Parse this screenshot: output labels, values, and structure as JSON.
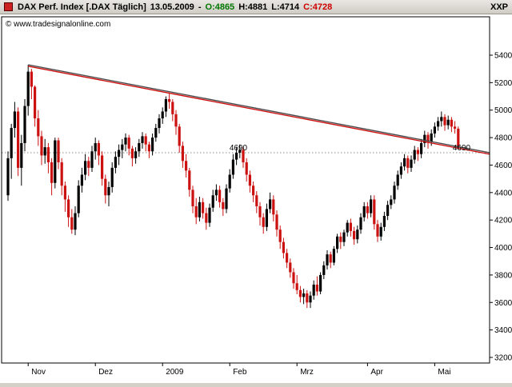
{
  "header": {
    "instrument": "DAX Perf. Index [.DAX  Täglich]",
    "date": "13.05.2009",
    "separator": "-",
    "open": "O:4865",
    "high": "H:4881",
    "low": "L:4714",
    "close": "C:4728",
    "top_right": "XXP"
  },
  "watermark": "© www.tradesignalonline.com",
  "chart_data": {
    "type": "candlestick",
    "title": "DAX Perf. Index [.DAX Täglich] 13.05.2009",
    "ylabel": "",
    "xlabel": "",
    "ylim": [
      3200,
      5400
    ],
    "grid": false,
    "legend_position": "none",
    "y_ticks": [
      5400,
      5200,
      5000,
      4800,
      4600,
      4400,
      4200,
      4000,
      3800,
      3600,
      3400,
      3200
    ],
    "x_ticks": [
      {
        "label": "Nov",
        "index": 6
      },
      {
        "label": "Dez",
        "index": 26
      },
      {
        "label": "2009",
        "index": 46
      },
      {
        "label": "Feb",
        "index": 66
      },
      {
        "label": "Mrz",
        "index": 86
      },
      {
        "label": "Apr",
        "index": 107
      },
      {
        "label": "Mai",
        "index": 127
      }
    ],
    "ohlc_format": [
      "open",
      "high",
      "low",
      "close"
    ],
    "candles": [
      [
        4380,
        4700,
        4340,
        4650
      ],
      [
        4650,
        4900,
        4500,
        4870
      ],
      [
        4870,
        5060,
        4800,
        4990
      ],
      [
        4990,
        5020,
        4520,
        4580
      ],
      [
        4580,
        4820,
        4450,
        4760
      ],
      [
        4760,
        5080,
        4700,
        5030
      ],
      [
        5030,
        5330,
        4960,
        5280
      ],
      [
        5280,
        5300,
        5080,
        5170
      ],
      [
        5170,
        5180,
        4880,
        4940
      ],
      [
        4940,
        5000,
        4740,
        4810
      ],
      [
        4810,
        4850,
        4600,
        4670
      ],
      [
        4670,
        4790,
        4610,
        4730
      ],
      [
        4730,
        4760,
        4540,
        4620
      ],
      [
        4620,
        4650,
        4380,
        4470
      ],
      [
        4470,
        4800,
        4430,
        4780
      ],
      [
        4780,
        4800,
        4570,
        4620
      ],
      [
        4620,
        4650,
        4380,
        4450
      ],
      [
        4450,
        4480,
        4260,
        4350
      ],
      [
        4350,
        4380,
        4150,
        4220
      ],
      [
        4220,
        4280,
        4100,
        4130
      ],
      [
        4130,
        4300,
        4090,
        4250
      ],
      [
        4250,
        4490,
        4220,
        4450
      ],
      [
        4450,
        4580,
        4400,
        4530
      ],
      [
        4530,
        4680,
        4490,
        4630
      ],
      [
        4630,
        4660,
        4520,
        4580
      ],
      [
        4580,
        4740,
        4550,
        4700
      ],
      [
        4700,
        4800,
        4640,
        4760
      ],
      [
        4760,
        4780,
        4600,
        4670
      ],
      [
        4670,
        4700,
        4450,
        4500
      ],
      [
        4500,
        4530,
        4320,
        4380
      ],
      [
        4380,
        4480,
        4300,
        4440
      ],
      [
        4440,
        4620,
        4400,
        4580
      ],
      [
        4580,
        4700,
        4540,
        4660
      ],
      [
        4660,
        4750,
        4600,
        4710
      ],
      [
        4710,
        4790,
        4650,
        4750
      ],
      [
        4750,
        4830,
        4700,
        4800
      ],
      [
        4800,
        4820,
        4670,
        4720
      ],
      [
        4720,
        4740,
        4590,
        4650
      ],
      [
        4650,
        4730,
        4610,
        4700
      ],
      [
        4700,
        4790,
        4660,
        4760
      ],
      [
        4760,
        4840,
        4720,
        4810
      ],
      [
        4810,
        4830,
        4700,
        4750
      ],
      [
        4750,
        4770,
        4650,
        4700
      ],
      [
        4700,
        4830,
        4670,
        4800
      ],
      [
        4800,
        4900,
        4770,
        4870
      ],
      [
        4870,
        4970,
        4830,
        4940
      ],
      [
        4940,
        5020,
        4900,
        4990
      ],
      [
        4990,
        5100,
        4950,
        5080
      ],
      [
        5080,
        5120,
        5010,
        5060
      ],
      [
        5060,
        5080,
        4920,
        4970
      ],
      [
        4970,
        5000,
        4820,
        4880
      ],
      [
        4880,
        4900,
        4690,
        4740
      ],
      [
        4740,
        4770,
        4580,
        4630
      ],
      [
        4630,
        4680,
        4510,
        4560
      ],
      [
        4560,
        4580,
        4370,
        4420
      ],
      [
        4420,
        4450,
        4250,
        4300
      ],
      [
        4300,
        4360,
        4170,
        4220
      ],
      [
        4220,
        4370,
        4190,
        4330
      ],
      [
        4330,
        4360,
        4210,
        4250
      ],
      [
        4250,
        4290,
        4130,
        4180
      ],
      [
        4180,
        4320,
        4150,
        4290
      ],
      [
        4290,
        4420,
        4260,
        4380
      ],
      [
        4380,
        4460,
        4340,
        4420
      ],
      [
        4420,
        4450,
        4290,
        4330
      ],
      [
        4330,
        4360,
        4230,
        4280
      ],
      [
        4280,
        4460,
        4250,
        4430
      ],
      [
        4430,
        4570,
        4400,
        4530
      ],
      [
        4530,
        4680,
        4500,
        4640
      ],
      [
        4640,
        4730,
        4600,
        4690
      ],
      [
        4690,
        4750,
        4650,
        4710
      ],
      [
        4710,
        4730,
        4580,
        4620
      ],
      [
        4620,
        4650,
        4480,
        4530
      ],
      [
        4530,
        4560,
        4400,
        4450
      ],
      [
        4450,
        4480,
        4330,
        4380
      ],
      [
        4380,
        4410,
        4250,
        4300
      ],
      [
        4300,
        4330,
        4160,
        4220
      ],
      [
        4220,
        4250,
        4100,
        4150
      ],
      [
        4150,
        4320,
        4120,
        4280
      ],
      [
        4280,
        4400,
        4250,
        4350
      ],
      [
        4350,
        4380,
        4190,
        4240
      ],
      [
        4240,
        4270,
        4080,
        4130
      ],
      [
        4130,
        4160,
        3990,
        4040
      ],
      [
        4040,
        4070,
        3920,
        3960
      ],
      [
        3960,
        3990,
        3850,
        3890
      ],
      [
        3890,
        3920,
        3780,
        3820
      ],
      [
        3820,
        3850,
        3700,
        3740
      ],
      [
        3740,
        3800,
        3660,
        3690
      ],
      [
        3690,
        3720,
        3600,
        3640
      ],
      [
        3640,
        3700,
        3588,
        3666
      ],
      [
        3666,
        3690,
        3560,
        3600
      ],
      [
        3600,
        3680,
        3560,
        3650
      ],
      [
        3650,
        3760,
        3620,
        3730
      ],
      [
        3730,
        3790,
        3650,
        3680
      ],
      [
        3680,
        3820,
        3660,
        3800
      ],
      [
        3800,
        3900,
        3770,
        3870
      ],
      [
        3870,
        3980,
        3840,
        3950
      ],
      [
        3950,
        3970,
        3850,
        3890
      ],
      [
        3890,
        4010,
        3870,
        3990
      ],
      [
        3990,
        4100,
        3960,
        4080
      ],
      [
        4080,
        4110,
        3990,
        4040
      ],
      [
        4040,
        4130,
        4010,
        4110
      ],
      [
        4110,
        4200,
        4080,
        4180
      ],
      [
        4180,
        4210,
        4080,
        4120
      ],
      [
        4120,
        4150,
        4020,
        4060
      ],
      [
        4060,
        4160,
        4030,
        4130
      ],
      [
        4130,
        4250,
        4100,
        4220
      ],
      [
        4220,
        4330,
        4190,
        4300
      ],
      [
        4300,
        4330,
        4210,
        4250
      ],
      [
        4250,
        4380,
        4220,
        4350
      ],
      [
        4350,
        4380,
        4130,
        4170
      ],
      [
        4170,
        4200,
        4040,
        4080
      ],
      [
        4080,
        4180,
        4050,
        4150
      ],
      [
        4150,
        4260,
        4120,
        4230
      ],
      [
        4230,
        4340,
        4200,
        4310
      ],
      [
        4310,
        4380,
        4280,
        4350
      ],
      [
        4350,
        4480,
        4320,
        4450
      ],
      [
        4450,
        4560,
        4420,
        4530
      ],
      [
        4530,
        4620,
        4500,
        4590
      ],
      [
        4590,
        4680,
        4560,
        4650
      ],
      [
        4650,
        4670,
        4540,
        4580
      ],
      [
        4580,
        4670,
        4550,
        4640
      ],
      [
        4640,
        4740,
        4610,
        4710
      ],
      [
        4710,
        4730,
        4630,
        4680
      ],
      [
        4680,
        4790,
        4650,
        4760
      ],
      [
        4760,
        4850,
        4730,
        4820
      ],
      [
        4820,
        4840,
        4720,
        4770
      ],
      [
        4770,
        4860,
        4740,
        4830
      ],
      [
        4830,
        4910,
        4800,
        4880
      ],
      [
        4880,
        4950,
        4850,
        4920
      ],
      [
        4920,
        4990,
        4880,
        4950
      ],
      [
        4950,
        4970,
        4850,
        4890
      ],
      [
        4890,
        4960,
        4860,
        4930
      ],
      [
        4930,
        4950,
        4840,
        4880
      ],
      [
        4880,
        4920,
        4830,
        4865
      ],
      [
        4865,
        4881,
        4714,
        4728
      ]
    ],
    "last_candle_ohlc": {
      "open": 4865,
      "high": 4881,
      "low": 4714,
      "close": 4728
    },
    "trendline": {
      "from_index": 6,
      "from_value": 5330,
      "to_value_at_right_edge": 4690
    },
    "horizontal_line": {
      "value": 4690,
      "left_label": "4690",
      "right_label": "4690"
    },
    "colors": {
      "up": "#000000",
      "down": "#cc1111",
      "trendline": "#cc1111",
      "trendline_shadow": "#4a4a4a",
      "hline": "#8a8a8a",
      "hline_left_label": "#8a8a8a",
      "hline_right_label": "#cc0000"
    }
  }
}
